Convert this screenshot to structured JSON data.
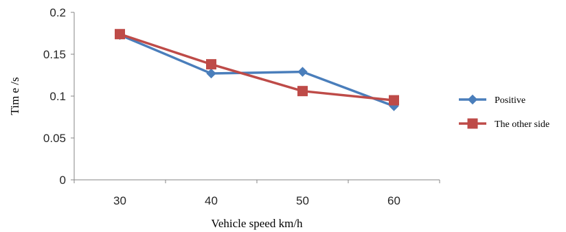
{
  "chart_data": {
    "type": "line",
    "title": "",
    "xlabel": "Vehicle speed km/h",
    "ylabel": "Tim e /s",
    "categories": [
      "30",
      "40",
      "50",
      "60"
    ],
    "ylim": [
      0,
      0.2
    ],
    "yticks": [
      0,
      0.05,
      0.1,
      0.15,
      0.2
    ],
    "ytick_labels": [
      "0",
      "0.05",
      "0.1",
      "0.15",
      "0.2"
    ],
    "grid": false,
    "legend_position": "right",
    "series": [
      {
        "name": "Positive",
        "values": [
          0.173,
          0.127,
          0.129,
          0.088
        ],
        "color": "#4a7ebb",
        "marker": "diamond"
      },
      {
        "name": "The other side",
        "values": [
          0.174,
          0.138,
          0.106,
          0.095
        ],
        "color": "#be4b48",
        "marker": "square"
      }
    ]
  }
}
